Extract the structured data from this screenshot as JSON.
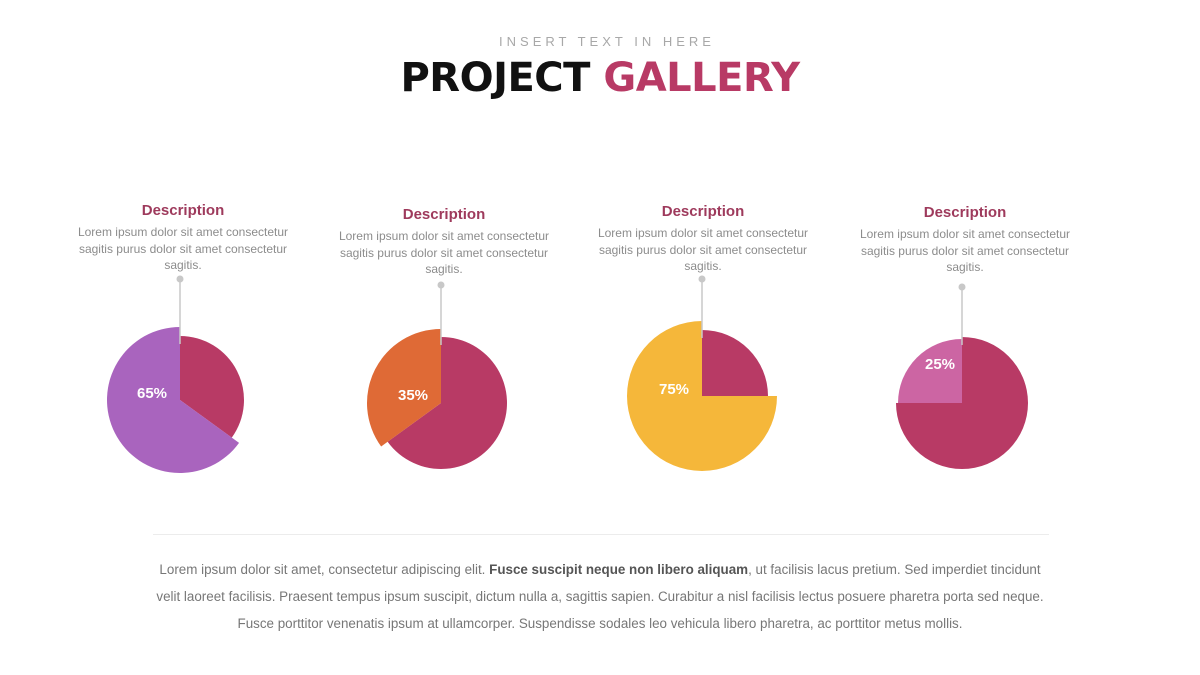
{
  "header": {
    "subtitle": "INSERT TEXT IN HERE",
    "title_main": "PROJECT",
    "title_accent": "GALLERY"
  },
  "colors": {
    "base_slice": "#b83a65",
    "pie1": "#a964be",
    "pie2": "#df6a36",
    "pie3": "#f5b73a",
    "pie4": "#cc65a3",
    "connector": "#c8c8c8"
  },
  "chart_data": [
    {
      "type": "pie",
      "slices": [
        {
          "label": "65%",
          "value": 65,
          "color": "#a964be"
        },
        {
          "value": 35,
          "color": "#b83a65"
        }
      ],
      "description_title": "Description",
      "description_text": "Lorem ipsum dolor sit amet consectetur sagitis purus dolor sit amet consectetur sagitis."
    },
    {
      "type": "pie",
      "slices": [
        {
          "label": "35%",
          "value": 35,
          "color": "#df6a36"
        },
        {
          "value": 65,
          "color": "#b83a65"
        }
      ],
      "description_title": "Description",
      "description_text": "Lorem ipsum dolor sit amet consectetur sagitis purus dolor sit amet consectetur sagitis."
    },
    {
      "type": "pie",
      "slices": [
        {
          "label": "75%",
          "value": 75,
          "color": "#f5b73a"
        },
        {
          "value": 25,
          "color": "#b83a65"
        }
      ],
      "description_title": "Description",
      "description_text": "Lorem ipsum dolor sit amet consectetur sagitis purus dolor sit amet consectetur sagitis."
    },
    {
      "type": "pie",
      "slices": [
        {
          "label": "25%",
          "value": 25,
          "color": "#cc65a3"
        },
        {
          "value": 75,
          "color": "#b83a65"
        }
      ],
      "description_title": "Description",
      "description_text": "Lorem ipsum dolor sit amet consectetur sagitis purus dolor sit amet consectetur sagitis."
    }
  ],
  "body": {
    "text_start": "Lorem ipsum dolor sit amet, consectetur adipiscing elit. ",
    "text_bold": "Fusce suscipit neque non libero aliquam",
    "text_end": ", ut facilisis lacus pretium. Sed imperdiet tincidunt velit laoreet facilisis. Praesent tempus ipsum suscipit, dictum nulla a, sagittis sapien. Curabitur a nisl facilisis lectus posuere pharetra porta sed neque. Fusce porttitor venenatis ipsum at ullamcorper. Suspendisse sodales leo vehicula libero pharetra, ac porttitor metus mollis."
  }
}
